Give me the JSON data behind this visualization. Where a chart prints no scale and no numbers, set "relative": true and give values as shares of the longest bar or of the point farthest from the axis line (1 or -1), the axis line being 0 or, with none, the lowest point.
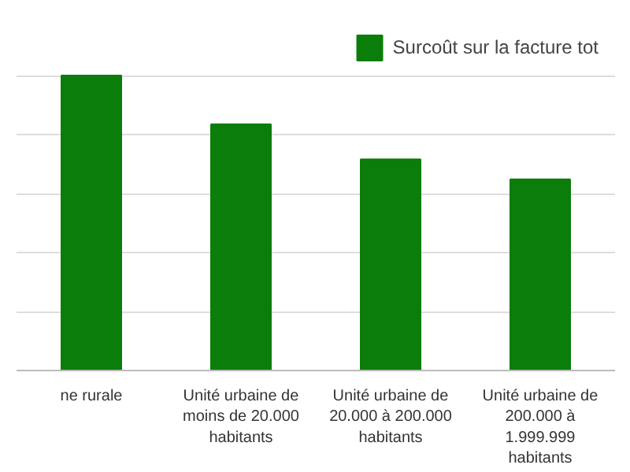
{
  "chart_data": {
    "type": "bar",
    "relative": true,
    "categories": [
      "ne rurale",
      "Unité urbaine de moins de 20.000 habitants",
      "Unité urbaine de 20.000 à 200.000 habitants",
      "Unité urbaine de 200.000 à 1.999.999 habitants"
    ],
    "series": [
      {
        "name": "Surcoût sur la facture tot",
        "color": "#0a7d0a",
        "values": [
          1,
          0.835,
          0.716,
          0.648
        ]
      }
    ],
    "grid": "y",
    "legend": "top right"
  }
}
